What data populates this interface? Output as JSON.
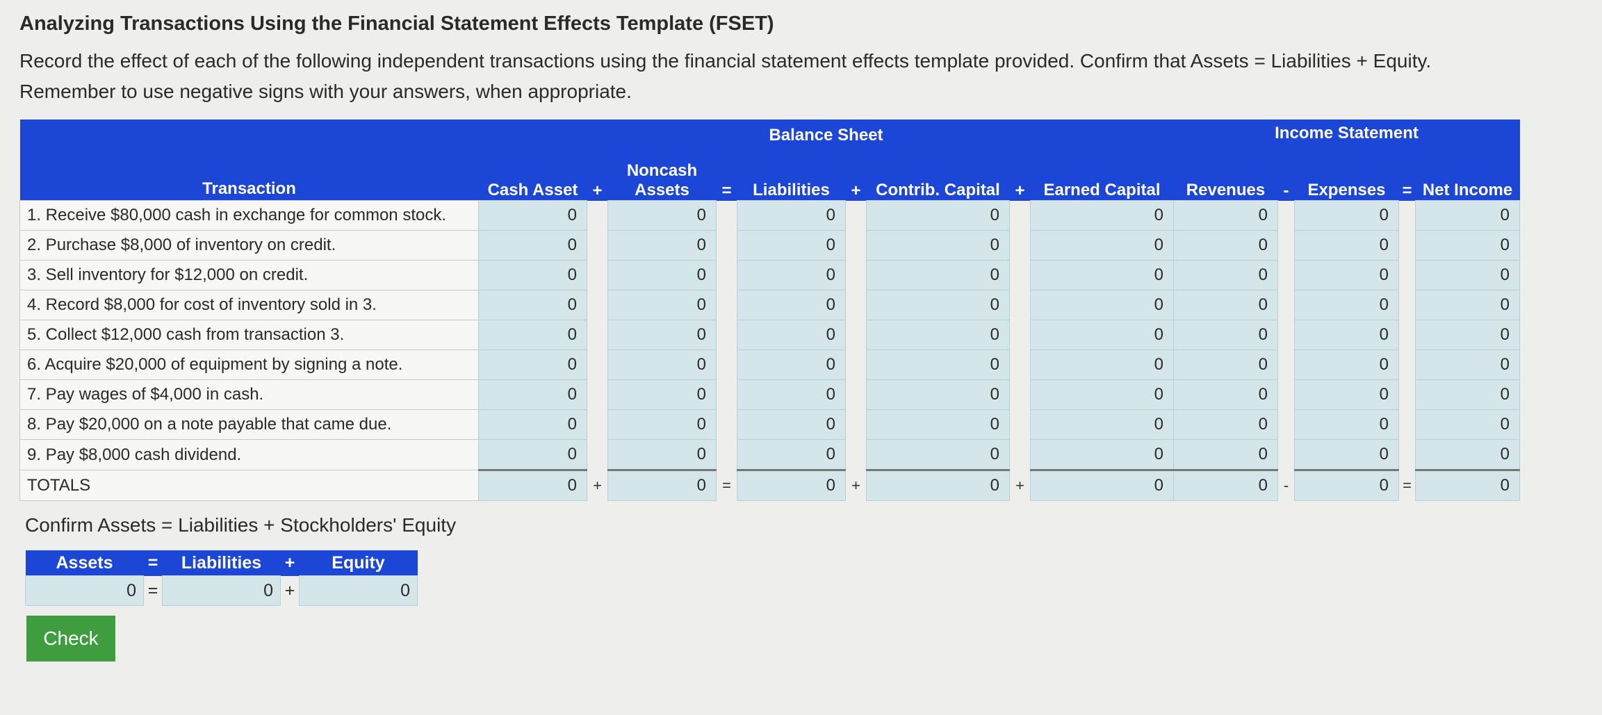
{
  "title": "Analyzing Transactions Using the Financial Statement Effects Template (FSET)",
  "instruction_line1": "Record the effect of each of the following independent transactions using the financial statement effects template provided. Confirm that Assets = Liabilities + Equity.",
  "instruction_line2": "Remember to use negative signs with your answers, when appropriate.",
  "headers": {
    "balance_sheet": "Balance Sheet",
    "income_statement": "Income Statement",
    "transaction": "Transaction",
    "cash_asset": "Cash Asset",
    "noncash_assets_line1": "Noncash",
    "noncash_assets_line2": "Assets",
    "liabilities": "Liabilities",
    "contrib_capital": "Contrib. Capital",
    "earned_capital": "Earned Capital",
    "revenues": "Revenues",
    "expenses": "Expenses",
    "net_income": "Net Income",
    "op_plus": "+",
    "op_eq": "=",
    "op_minus": "-"
  },
  "rows": [
    {
      "label": "1. Receive $80,000 cash in exchange for common stock.",
      "values": [
        "0",
        "0",
        "0",
        "0",
        "0",
        "0",
        "0",
        "0"
      ]
    },
    {
      "label": "2. Purchase $8,000 of inventory on credit.",
      "values": [
        "0",
        "0",
        "0",
        "0",
        "0",
        "0",
        "0",
        "0"
      ]
    },
    {
      "label": "3. Sell inventory for $12,000 on credit.",
      "values": [
        "0",
        "0",
        "0",
        "0",
        "0",
        "0",
        "0",
        "0"
      ]
    },
    {
      "label": "4. Record $8,000 for cost of inventory sold in 3.",
      "values": [
        "0",
        "0",
        "0",
        "0",
        "0",
        "0",
        "0",
        "0"
      ]
    },
    {
      "label": "5. Collect $12,000 cash from transaction 3.",
      "values": [
        "0",
        "0",
        "0",
        "0",
        "0",
        "0",
        "0",
        "0"
      ]
    },
    {
      "label": "6. Acquire $20,000 of equipment by signing a note.",
      "values": [
        "0",
        "0",
        "0",
        "0",
        "0",
        "0",
        "0",
        "0"
      ]
    },
    {
      "label": "7. Pay wages of $4,000 in cash.",
      "values": [
        "0",
        "0",
        "0",
        "0",
        "0",
        "0",
        "0",
        "0"
      ]
    },
    {
      "label": "8. Pay $20,000 on a note payable that came due.",
      "values": [
        "0",
        "0",
        "0",
        "0",
        "0",
        "0",
        "0",
        "0"
      ]
    },
    {
      "label": "9. Pay $8,000 cash dividend.",
      "values": [
        "0",
        "0",
        "0",
        "0",
        "0",
        "0",
        "0",
        "0"
      ]
    },
    {
      "label": "TOTALS",
      "values": [
        "0",
        "0",
        "0",
        "0",
        "0",
        "0",
        "0",
        "0"
      ]
    }
  ],
  "confirm": {
    "label": "Confirm Assets = Liabilities + Stockholders' Equity",
    "assets": "Assets",
    "liabilities": "Liabilities",
    "equity": "Equity",
    "op_eq": "=",
    "op_plus": "+",
    "values": [
      "0",
      "0",
      "0"
    ]
  },
  "check_button": "Check"
}
